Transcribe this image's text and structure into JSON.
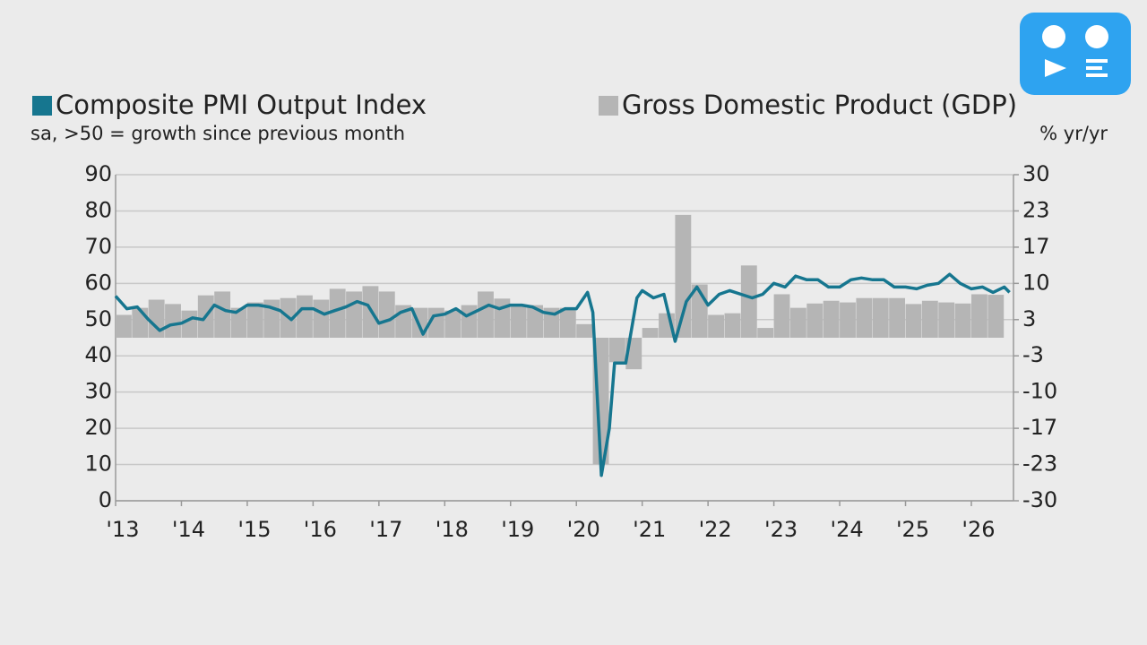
{
  "chart_data": {
    "type": "combo",
    "ylabel": "sa, >50 = growth since previous month",
    "y2label": "% yr/yr",
    "grid": true,
    "xlim": [
      2013,
      2026.64
    ],
    "xticks": [
      {
        "value": 2013,
        "label": "'13"
      },
      {
        "value": 2014,
        "label": "'14"
      },
      {
        "value": 2015,
        "label": "'15"
      },
      {
        "value": 2016,
        "label": "'16"
      },
      {
        "value": 2017,
        "label": "'17"
      },
      {
        "value": 2018,
        "label": "'18"
      },
      {
        "value": 2019,
        "label": "'19"
      },
      {
        "value": 2020,
        "label": "'20"
      },
      {
        "value": 2021,
        "label": "'21"
      },
      {
        "value": 2022,
        "label": "'22"
      },
      {
        "value": 2023,
        "label": "'23"
      },
      {
        "value": 2024,
        "label": "'24"
      },
      {
        "value": 2025,
        "label": "'25"
      },
      {
        "value": 2026,
        "label": "'26"
      }
    ],
    "ylim": [
      0,
      90
    ],
    "yticks": [
      0,
      10,
      20,
      30,
      40,
      50,
      60,
      70,
      80,
      90
    ],
    "y2lim": [
      -30,
      30
    ],
    "y2ticks": [
      -30,
      {
        "value": -23.333,
        "label": "-23"
      },
      {
        "value": -16.667,
        "label": "-17"
      },
      -10,
      {
        "value": -3.333,
        "label": "-3"
      },
      {
        "value": 3.333,
        "label": "3"
      },
      10,
      {
        "value": 16.667,
        "label": "17"
      },
      {
        "value": 23.333,
        "label": "23"
      },
      30
    ],
    "series": [
      {
        "name": "Composite PMI Output Index",
        "type": "line",
        "color": "#16768f",
        "x": [
          2013.0,
          2013.17,
          2013.33,
          2013.5,
          2013.67,
          2013.83,
          2014.0,
          2014.17,
          2014.33,
          2014.5,
          2014.67,
          2014.83,
          2015.0,
          2015.17,
          2015.33,
          2015.5,
          2015.67,
          2015.83,
          2016.0,
          2016.17,
          2016.33,
          2016.5,
          2016.67,
          2016.83,
          2017.0,
          2017.17,
          2017.33,
          2017.5,
          2017.67,
          2017.83,
          2018.0,
          2018.17,
          2018.33,
          2018.5,
          2018.67,
          2018.83,
          2019.0,
          2019.17,
          2019.33,
          2019.5,
          2019.67,
          2019.83,
          2020.0,
          2020.17,
          2020.25,
          2020.38,
          2020.5,
          2020.58,
          2020.75,
          2020.92,
          2021.0,
          2021.17,
          2021.33,
          2021.5,
          2021.67,
          2021.83,
          2022.0,
          2022.17,
          2022.33,
          2022.5,
          2022.67,
          2022.83,
          2023.0,
          2023.17,
          2023.33,
          2023.5,
          2023.67,
          2023.83,
          2024.0,
          2024.17,
          2024.33,
          2024.5,
          2024.67,
          2024.83,
          2025.0,
          2025.17,
          2025.33,
          2025.5,
          2025.67,
          2025.83,
          2026.0,
          2026.17,
          2026.33,
          2026.5,
          2026.58
        ],
        "values": [
          56.5,
          53,
          53.5,
          50,
          47,
          48.5,
          49,
          50.5,
          50,
          54,
          52.5,
          52,
          54,
          54,
          53.5,
          52.5,
          50,
          53,
          53,
          51.5,
          52.5,
          53.5,
          55,
          54,
          49,
          50,
          52,
          53,
          46,
          51,
          51.5,
          53,
          51,
          52.5,
          54,
          53,
          54,
          54,
          53.5,
          52,
          51.5,
          53,
          53,
          57.5,
          52,
          7,
          20,
          38,
          38,
          56,
          58,
          56,
          57,
          44,
          55,
          59,
          54,
          57,
          58,
          57,
          56,
          57,
          60,
          59,
          62,
          61,
          61,
          59,
          59,
          61,
          61.5,
          61,
          61,
          59,
          59,
          58.5,
          59.5,
          60,
          62.5,
          60,
          58.5,
          59,
          57.5,
          59,
          57.5
        ]
      },
      {
        "name": "Gross Domestic Product (GDP)",
        "type": "bar",
        "axis": "y2",
        "color": "#b5b5b5",
        "x": [
          2013.0,
          2013.25,
          2013.5,
          2013.75,
          2014.0,
          2014.25,
          2014.5,
          2014.75,
          2015.0,
          2015.25,
          2015.5,
          2015.75,
          2016.0,
          2016.25,
          2016.5,
          2016.75,
          2017.0,
          2017.25,
          2017.5,
          2017.75,
          2018.0,
          2018.25,
          2018.5,
          2018.75,
          2019.0,
          2019.25,
          2019.5,
          2019.75,
          2020.0,
          2020.25,
          2020.5,
          2020.75,
          2021.0,
          2021.25,
          2021.5,
          2021.75,
          2022.0,
          2022.25,
          2022.5,
          2022.75,
          2023.0,
          2023.25,
          2023.5,
          2023.75,
          2024.0,
          2024.25,
          2024.5,
          2024.75,
          2025.0,
          2025.25,
          2025.5,
          2025.75,
          2026.0,
          2026.25
        ],
        "values": [
          4.2,
          5.5,
          7.0,
          6.2,
          5.0,
          7.8,
          8.5,
          5.5,
          6.5,
          7.0,
          7.3,
          7.8,
          7.0,
          9.0,
          8.5,
          9.5,
          8.5,
          6.0,
          5.5,
          5.5,
          5.0,
          6.0,
          8.5,
          7.2,
          6.0,
          6.0,
          5.5,
          5.5,
          2.5,
          -23.3,
          -4.5,
          -5.8,
          1.8,
          4.5,
          22.6,
          9.8,
          4.2,
          4.5,
          13.3,
          1.8,
          8.0,
          5.5,
          6.3,
          6.8,
          6.5,
          7.3,
          7.3,
          7.3,
          6.2,
          6.8,
          6.5,
          6.3,
          8.0,
          7.9
        ]
      }
    ]
  }
}
